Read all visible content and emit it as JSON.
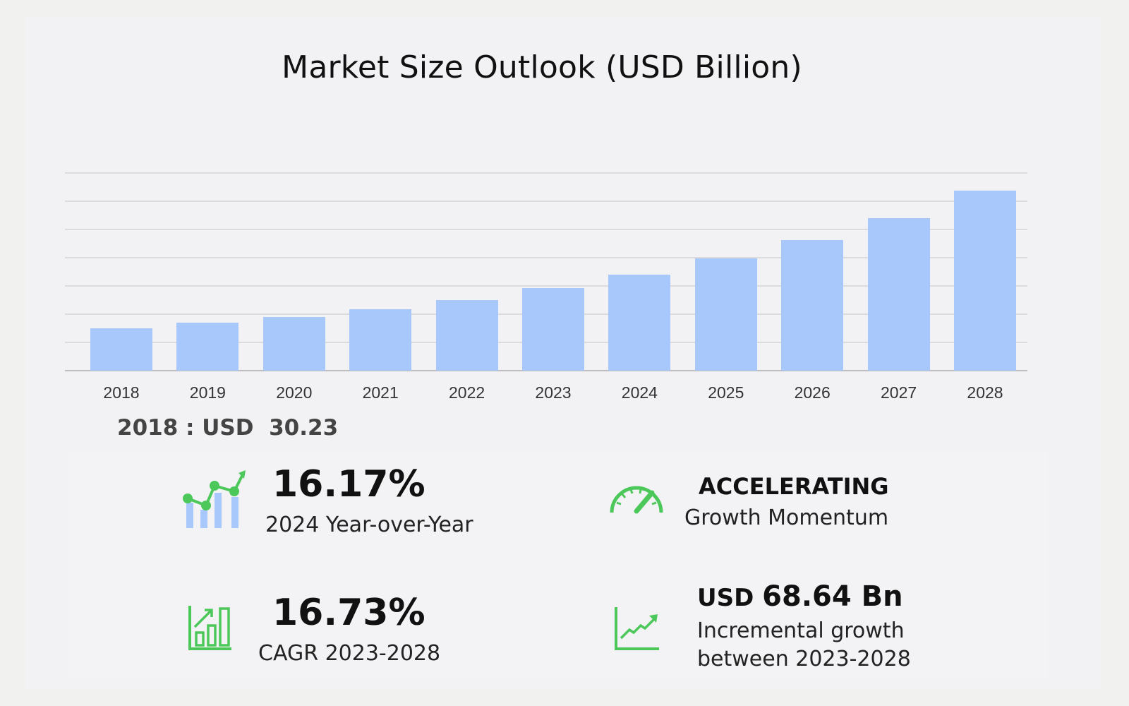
{
  "title": "Market Size Outlook (USD Billion)",
  "first_year_label": "2018 : USD  30.23",
  "colors": {
    "bar": "#a8c8fb",
    "icon_green": "#4cc85a",
    "icon_blue": "#a8c8fb"
  },
  "stats": {
    "yoy": {
      "value": "16.17%",
      "label": "2024 Year-over-Year",
      "icon": "line-bar-growth-icon"
    },
    "momentum": {
      "value": "ACCELERATING",
      "label": "Growth Momentum",
      "icon": "speedometer-icon"
    },
    "cagr": {
      "value": "16.73%",
      "label": "CAGR 2023-2028",
      "icon": "bar-chart-arrow-icon"
    },
    "incremental": {
      "value_prefix": "USD ",
      "value": "68.64 Bn",
      "label_line1": "Incremental growth",
      "label_line2": "between 2023-2028",
      "icon": "trend-line-icon"
    }
  },
  "chart_data": {
    "type": "bar",
    "title": "Market Size Outlook (USD Billion)",
    "xlabel": "",
    "ylabel": "USD Billion",
    "categories": [
      "2018",
      "2019",
      "2020",
      "2021",
      "2022",
      "2023",
      "2024",
      "2025",
      "2026",
      "2027",
      "2028"
    ],
    "values": [
      30.23,
      34.2,
      38.2,
      43.6,
      50.1,
      58.7,
      68.2,
      79.4,
      92.3,
      108.0,
      127.4
    ],
    "ylim": [
      0,
      140
    ],
    "y_gridlines": [
      0,
      20,
      40,
      60,
      80,
      100,
      120,
      140
    ],
    "grid": true,
    "y_tick_labels_visible": false,
    "legend": null,
    "annotations": [
      "2018 : USD 30.23",
      "16.17% 2024 Year-over-Year",
      "ACCELERATING Growth Momentum",
      "16.73% CAGR 2023-2028",
      "USD 68.64 Bn Incremental growth between 2023-2028"
    ]
  }
}
